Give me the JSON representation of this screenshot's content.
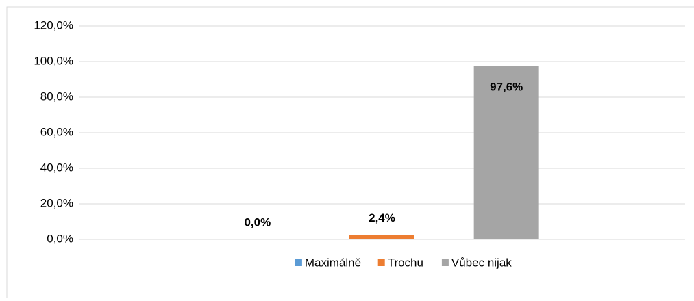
{
  "chart_data": {
    "type": "bar",
    "categories": [
      null
    ],
    "series": [
      {
        "name": "Maximálně",
        "color": "#5b9bd5",
        "values": [
          0
        ],
        "value_labels": [
          "0,0%"
        ]
      },
      {
        "name": "Trochu",
        "color": "#ed7d31",
        "values": [
          2.4
        ],
        "value_labels": [
          "2,4%"
        ]
      },
      {
        "name": "Vůbec nijak",
        "color": "#a5a5a5",
        "values": [
          97.6
        ],
        "value_labels": [
          "97,6%"
        ]
      }
    ],
    "ylim": [
      0,
      120
    ],
    "yticks": [
      {
        "value": 0,
        "label": "0,0%"
      },
      {
        "value": 20,
        "label": "20,0%"
      },
      {
        "value": 40,
        "label": "40,0%"
      },
      {
        "value": 60,
        "label": "60,0%"
      },
      {
        "value": 80,
        "label": "80,0%"
      },
      {
        "value": 100,
        "label": "100,0%"
      },
      {
        "value": 120,
        "label": "120,0%"
      }
    ],
    "grid": true,
    "legend": "bottom"
  }
}
